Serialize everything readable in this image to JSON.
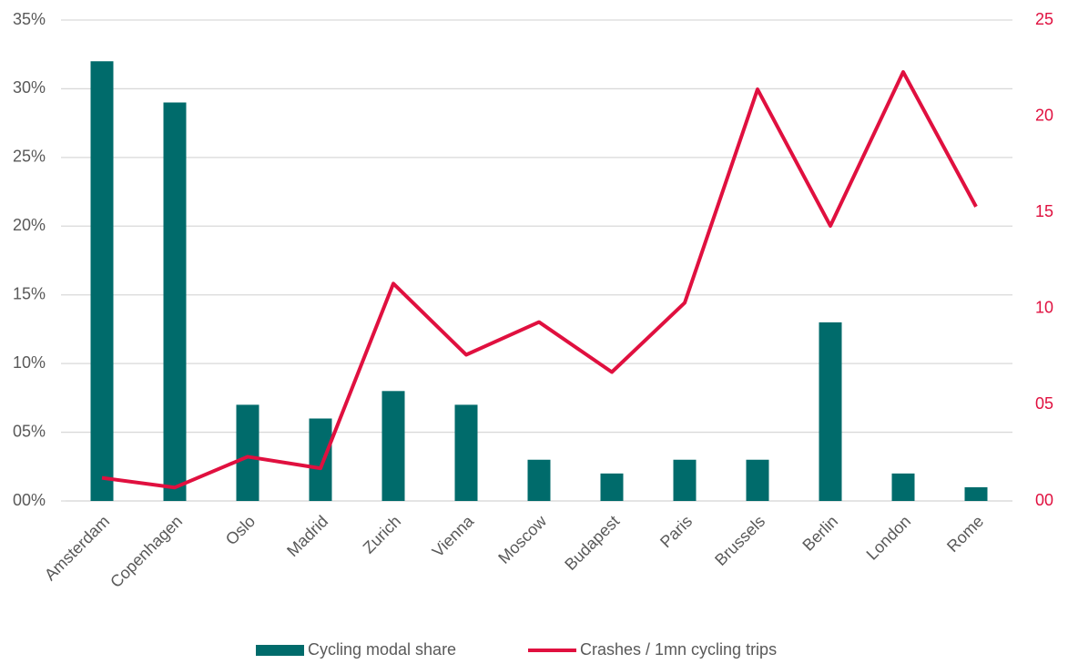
{
  "chart_data": {
    "type": "bar-line",
    "categories": [
      "Amsterdam",
      "Copenhagen",
      "Oslo",
      "Madrid",
      "Zurich",
      "Vienna",
      "Moscow",
      "Budapest",
      "Paris",
      "Brussels",
      "Berlin",
      "London",
      "Rome"
    ],
    "series": [
      {
        "name": "Cycling modal share",
        "type": "bar",
        "color": "#006b6b",
        "values": [
          32,
          29,
          7,
          6,
          8,
          7,
          3,
          2,
          3,
          3,
          13,
          2,
          1
        ]
      },
      {
        "name": "Crashes / 1mn cycling trips",
        "type": "line",
        "axis": "y2",
        "color": "#e0103f",
        "values": [
          1.2,
          0.7,
          2.3,
          1.7,
          11.3,
          7.6,
          9.3,
          6.7,
          10.3,
          21.4,
          14.3,
          22.3,
          15.3
        ]
      }
    ],
    "ylim": [
      0,
      35
    ],
    "yticks": [
      {
        "value": 0,
        "label": "00%"
      },
      {
        "value": 5,
        "label": "05%"
      },
      {
        "value": 10,
        "label": "10%"
      },
      {
        "value": 15,
        "label": "15%"
      },
      {
        "value": 20,
        "label": "20%"
      },
      {
        "value": 25,
        "label": "25%"
      },
      {
        "value": 30,
        "label": "30%"
      },
      {
        "value": 35,
        "label": "35%"
      }
    ],
    "y2lim": [
      0,
      25
    ],
    "y2ticks": [
      {
        "value": 0,
        "label": "00"
      },
      {
        "value": 5,
        "label": "05"
      },
      10,
      15,
      20,
      25
    ],
    "grid": true,
    "legend": "bottom"
  }
}
